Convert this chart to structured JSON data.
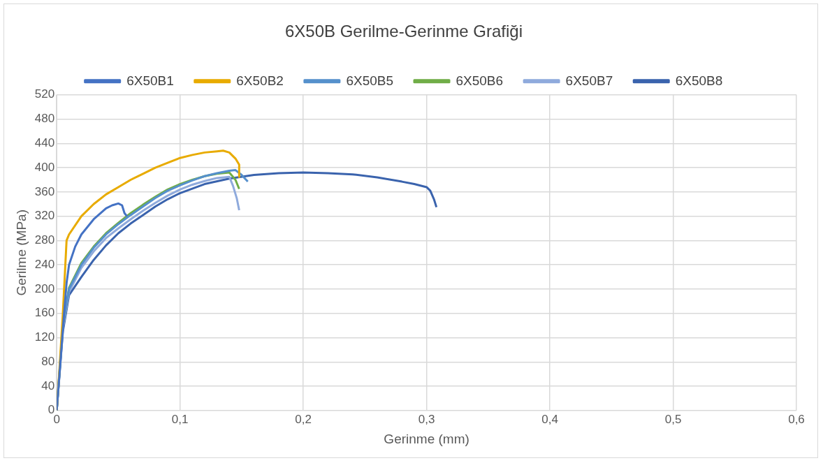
{
  "chart_data": {
    "type": "line",
    "title": "6X50B Gerilme-Gerinme Grafiği",
    "xlabel": "Gerinme (mm)",
    "ylabel": "Gerilme (MPa)",
    "xlim": [
      0,
      0.6
    ],
    "xticks": [
      {
        "value": 0,
        "label": "0"
      },
      {
        "value": 0.1,
        "label": "0,1"
      },
      {
        "value": 0.2,
        "label": "0,2"
      },
      {
        "value": 0.3,
        "label": "0,3"
      },
      {
        "value": 0.4,
        "label": "0,4"
      },
      {
        "value": 0.5,
        "label": "0,5"
      },
      {
        "value": 0.6,
        "label": "0,6"
      }
    ],
    "ylim": [
      0,
      520
    ],
    "yticks": [
      0,
      40,
      80,
      120,
      160,
      200,
      240,
      280,
      320,
      360,
      400,
      440,
      480,
      520
    ],
    "grid": true,
    "legend": "top",
    "marker": "none",
    "line_style": "solid",
    "series": [
      {
        "name": "6X50B1",
        "color": "#4472c4",
        "x": [
          0,
          0.003,
          0.006,
          0.008,
          0.01,
          0.015,
          0.02,
          0.03,
          0.04,
          0.045,
          0.05,
          0.053,
          0.055,
          0.057
        ],
        "values": [
          0,
          80,
          160,
          210,
          240,
          270,
          290,
          315,
          333,
          338,
          341,
          338,
          325,
          320
        ]
      },
      {
        "name": "6X50B2",
        "color": "#e8ab00",
        "x": [
          0,
          0.002,
          0.005,
          0.008,
          0.01,
          0.02,
          0.03,
          0.04,
          0.05,
          0.06,
          0.07,
          0.08,
          0.09,
          0.1,
          0.11,
          0.12,
          0.13,
          0.135,
          0.14,
          0.145,
          0.148,
          0.148
        ],
        "values": [
          0,
          60,
          160,
          280,
          290,
          320,
          340,
          356,
          368,
          380,
          390,
          400,
          408,
          416,
          421,
          425,
          427,
          428,
          425,
          415,
          405,
          385
        ]
      },
      {
        "name": "6X50B5",
        "color": "#5590cc",
        "x": [
          0,
          0.005,
          0.01,
          0.02,
          0.03,
          0.04,
          0.05,
          0.06,
          0.07,
          0.08,
          0.09,
          0.1,
          0.11,
          0.12,
          0.13,
          0.14,
          0.145,
          0.15,
          0.155
        ],
        "values": [
          0,
          140,
          200,
          240,
          268,
          290,
          307,
          322,
          336,
          350,
          362,
          371,
          379,
          386,
          391,
          395,
          396,
          388,
          377
        ]
      },
      {
        "name": "6X50B6",
        "color": "#70ad47",
        "x": [
          0,
          0.005,
          0.01,
          0.02,
          0.03,
          0.04,
          0.05,
          0.06,
          0.07,
          0.08,
          0.09,
          0.1,
          0.11,
          0.12,
          0.13,
          0.14,
          0.145,
          0.148
        ],
        "values": [
          0,
          140,
          202,
          243,
          270,
          292,
          309,
          325,
          339,
          352,
          364,
          373,
          380,
          386,
          390,
          392,
          380,
          365
        ]
      },
      {
        "name": "6X50B7",
        "color": "#8faadc",
        "x": [
          0,
          0.005,
          0.01,
          0.02,
          0.03,
          0.04,
          0.05,
          0.06,
          0.07,
          0.08,
          0.09,
          0.1,
          0.11,
          0.12,
          0.13,
          0.14,
          0.143,
          0.146,
          0.148
        ],
        "values": [
          0,
          135,
          195,
          235,
          262,
          284,
          300,
          315,
          329,
          342,
          354,
          364,
          372,
          378,
          383,
          385,
          370,
          350,
          330
        ]
      },
      {
        "name": "6X50B8",
        "color": "#3a63ad",
        "x": [
          0,
          0.005,
          0.01,
          0.02,
          0.03,
          0.04,
          0.05,
          0.06,
          0.07,
          0.08,
          0.09,
          0.1,
          0.12,
          0.14,
          0.16,
          0.18,
          0.2,
          0.22,
          0.24,
          0.26,
          0.28,
          0.29,
          0.3,
          0.303,
          0.306,
          0.308
        ],
        "values": [
          0,
          130,
          190,
          220,
          248,
          272,
          292,
          308,
          322,
          336,
          348,
          358,
          373,
          382,
          388,
          391,
          392,
          391,
          389,
          384,
          377,
          373,
          368,
          362,
          348,
          335
        ]
      }
    ]
  }
}
